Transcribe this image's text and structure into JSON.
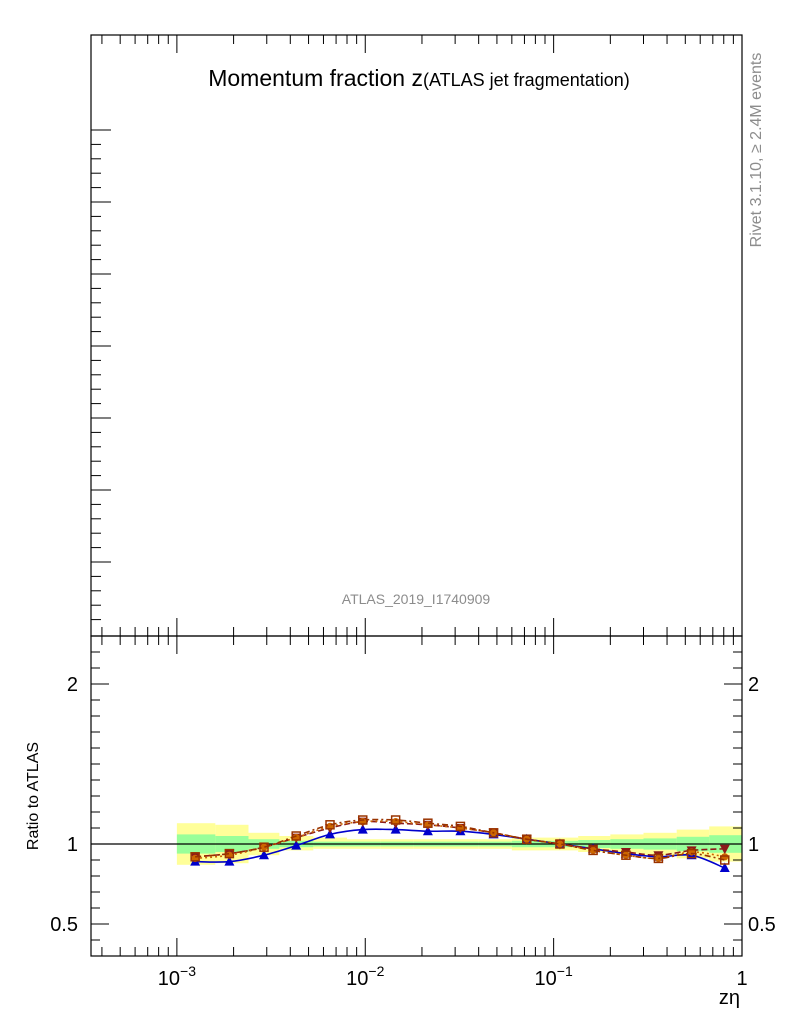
{
  "chart_data": {
    "type": "line",
    "title_main": "Momentum fraction ",
    "title_var": "z",
    "title_sub": "(ATLAS jet fragmentation)",
    "side_label": "Rivet 3.1.10, ≥ 2.4M events",
    "analysis_label": "ATLAS_2019_I1740909",
    "xlabel": "zη",
    "ylabel": "Ratio to ATLAS",
    "x_scale": "log",
    "xlim": [
      0.00035,
      1.0
    ],
    "ylim": [
      0.3,
      2.3
    ],
    "x_ticks": [
      {
        "value": 0.001,
        "base": "10",
        "exp": "−3"
      },
      {
        "value": 0.01,
        "base": "10",
        "exp": "−2"
      },
      {
        "value": 0.1,
        "base": "10",
        "exp": "−1"
      },
      {
        "value": 1.0,
        "base": "1",
        "exp": ""
      }
    ],
    "y_ticks": [
      {
        "value": 0.5,
        "label": "0.5"
      },
      {
        "value": 1.0,
        "label": "1"
      },
      {
        "value": 2.0,
        "label": "2"
      }
    ],
    "x": [
      0.00125,
      0.0019,
      0.0029,
      0.0043,
      0.0065,
      0.0097,
      0.0145,
      0.0215,
      0.032,
      0.048,
      0.072,
      0.108,
      0.162,
      0.242,
      0.36,
      0.54,
      0.81
    ],
    "bin_edges": [
      0.001,
      0.0016,
      0.0024,
      0.0035,
      0.0053,
      0.008,
      0.012,
      0.018,
      0.027,
      0.04,
      0.06,
      0.09,
      0.135,
      0.2,
      0.3,
      0.45,
      0.67,
      1.0
    ],
    "band_outer": [
      [
        0.87,
        1.13
      ],
      [
        0.88,
        1.12
      ],
      [
        0.93,
        1.07
      ],
      [
        0.96,
        1.05
      ],
      [
        0.97,
        1.04
      ],
      [
        0.97,
        1.03
      ],
      [
        0.97,
        1.03
      ],
      [
        0.97,
        1.03
      ],
      [
        0.97,
        1.03
      ],
      [
        0.97,
        1.03
      ],
      [
        0.96,
        1.04
      ],
      [
        0.96,
        1.04
      ],
      [
        0.95,
        1.05
      ],
      [
        0.94,
        1.06
      ],
      [
        0.93,
        1.07
      ],
      [
        0.91,
        1.09
      ],
      [
        0.89,
        1.11
      ]
    ],
    "band_inner": [
      [
        0.94,
        1.06
      ],
      [
        0.95,
        1.05
      ],
      [
        0.97,
        1.03
      ],
      [
        0.98,
        1.02
      ],
      [
        0.985,
        1.015
      ],
      [
        0.985,
        1.015
      ],
      [
        0.985,
        1.015
      ],
      [
        0.985,
        1.015
      ],
      [
        0.985,
        1.015
      ],
      [
        0.985,
        1.015
      ],
      [
        0.98,
        1.02
      ],
      [
        0.98,
        1.02
      ],
      [
        0.975,
        1.025
      ],
      [
        0.97,
        1.03
      ],
      [
        0.965,
        1.035
      ],
      [
        0.955,
        1.045
      ],
      [
        0.945,
        1.055
      ]
    ],
    "band_colors": {
      "outer": "#ffff99",
      "inner": "#99ff99"
    },
    "series": [
      {
        "color": "#0000cc",
        "dash": "",
        "marker": "triangle-up",
        "values": [
          0.89,
          0.89,
          0.93,
          0.99,
          1.06,
          1.09,
          1.09,
          1.08,
          1.08,
          1.06,
          1.03,
          1.0,
          0.97,
          0.94,
          0.92,
          0.93,
          0.85
        ]
      },
      {
        "color": "#8b1a1a",
        "dash": "6,3",
        "marker": "triangle-down",
        "values": [
          0.92,
          0.94,
          0.98,
          1.04,
          1.1,
          1.14,
          1.13,
          1.12,
          1.1,
          1.07,
          1.03,
          1.0,
          0.97,
          0.95,
          0.93,
          0.96,
          0.97
        ]
      },
      {
        "color": "#cc6600",
        "dash": "2,3",
        "marker": "circle",
        "values": [
          0.91,
          0.93,
          0.98,
          1.04,
          1.11,
          1.14,
          1.14,
          1.12,
          1.1,
          1.07,
          1.03,
          1.0,
          0.96,
          0.93,
          0.91,
          0.95,
          0.92
        ]
      },
      {
        "color": "#993300",
        "dash": "6,3,2,3",
        "marker": "square-open",
        "values": [
          0.92,
          0.94,
          0.98,
          1.05,
          1.12,
          1.15,
          1.15,
          1.13,
          1.11,
          1.07,
          1.03,
          1.0,
          0.96,
          0.93,
          0.91,
          0.94,
          0.9
        ]
      }
    ]
  }
}
